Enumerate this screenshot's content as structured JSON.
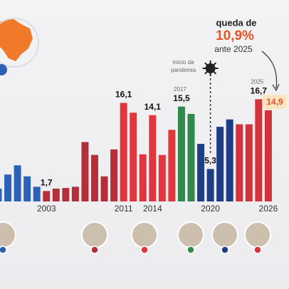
{
  "chart_data": {
    "type": "bar",
    "categories": [
      null,
      null,
      null,
      null,
      null,
      "2003",
      null,
      null,
      null,
      null,
      null,
      null,
      null,
      "2011",
      null,
      null,
      "2014",
      null,
      null,
      null,
      null,
      null,
      "2020",
      null,
      null,
      null,
      null,
      null,
      "2026"
    ],
    "values": [
      2.1,
      4.4,
      5.9,
      4.1,
      2.4,
      1.7,
      2.1,
      2.2,
      2.4,
      9.7,
      7.6,
      4.1,
      8.5,
      16.1,
      14.5,
      7.7,
      14.1,
      7.6,
      11.7,
      15.5,
      14.3,
      9.4,
      5.3,
      12.2,
      13.4,
      12.6,
      12.6,
      16.7,
      14.9
    ],
    "value_labels": [
      null,
      null,
      null,
      null,
      null,
      "1,7",
      null,
      null,
      null,
      null,
      null,
      null,
      null,
      "16,1",
      null,
      null,
      "14,1",
      null,
      null,
      "15,5",
      null,
      null,
      "5,3",
      null,
      null,
      null,
      null,
      "16,7",
      "14,9"
    ],
    "colors": [
      "#2c62b6",
      "#2c62b6",
      "#2c62b6",
      "#2c62b6",
      "#2c62b6",
      "#b3303a",
      "#b3303a",
      "#b3303a",
      "#b3303a",
      "#b3303a",
      "#b3303a",
      "#b3303a",
      "#b3303a",
      "#e2363e",
      "#e2363e",
      "#e2363e",
      "#e2363e",
      "#e2363e",
      "#e2363e",
      "#2f8a4c",
      "#2f8a4c",
      "#1f3d86",
      "#1f3d86",
      "#1f3d86",
      "#1f3d86",
      "#d3343c",
      "#d3343c",
      "#d3343c",
      "#d3343c"
    ],
    "bar_annotations": [
      {
        "index": 19,
        "text": "2017"
      },
      {
        "index": 27,
        "text": "2025"
      }
    ],
    "callout": {
      "line1": "queda de",
      "line2": "10,9%",
      "line3": "ante 2025"
    },
    "pandemic_note": {
      "line1": "início da",
      "line2": "pandemia",
      "index": 22
    }
  }
}
